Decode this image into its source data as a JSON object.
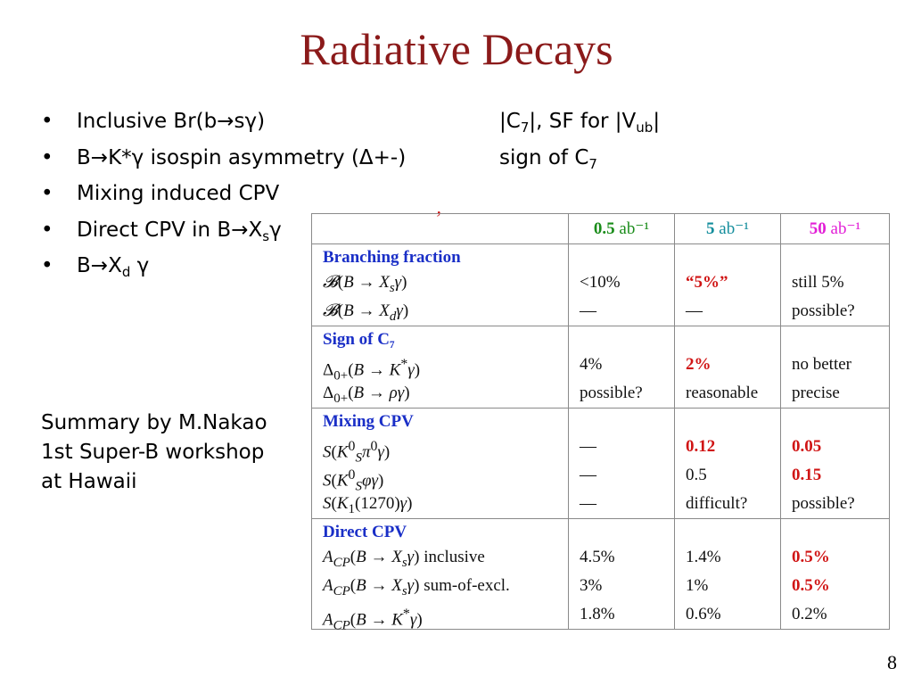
{
  "title": "Radiative Decays",
  "bullets": [
    {
      "pre": "Inclusive Br(b",
      "arrow": "→",
      "target": "s",
      "sub": "",
      "gamma": "γ",
      "post": ")"
    },
    {
      "pre": "B",
      "arrow": "→",
      "target": "K*",
      "sub": "",
      "gamma": "γ",
      "post": " isospin asymmetry (Δ+-)"
    },
    {
      "pre": "Mixing induced CPV",
      "arrow": "",
      "target": "",
      "sub": "",
      "gamma": "",
      "post": ""
    },
    {
      "pre": "Direct CPV in B",
      "arrow": "→",
      "target": "X",
      "sub": "s",
      "gamma": "γ",
      "post": ""
    },
    {
      "pre": "B",
      "arrow": "→",
      "target": "X",
      "sub": "d",
      "gamma": " γ",
      "post": ""
    }
  ],
  "notes": {
    "line1": {
      "a": "|C",
      "a_sub": "7",
      "b": "|, SF for |V",
      "b_sub": "ub",
      "c": "|"
    },
    "line2": {
      "a": "sign of C",
      "a_sub": "7"
    }
  },
  "stray_mark": "ʼ",
  "summary": [
    "Summary by M.Nakao",
    "1st Super-B workshop",
    "at Hawaii"
  ],
  "table": {
    "headers": [
      {
        "num": "0.5",
        "unit": " ab⁻¹"
      },
      {
        "num": "5",
        "unit": " ab⁻¹"
      },
      {
        "num": "50",
        "unit": " ab⁻¹"
      }
    ],
    "sections": [
      {
        "name": "Branching fraction",
        "rows": [
          {
            "label": "𝓑(B → X_sγ)",
            "v1": "<10%",
            "v2": "“5%”",
            "v3": "still 5%",
            "red": [
              false,
              true,
              false
            ]
          },
          {
            "label": "𝓑(B → X_dγ)",
            "v1": "—",
            "v2": "—",
            "v3": "possible?",
            "red": [
              false,
              false,
              false
            ]
          }
        ]
      },
      {
        "name": "Sign of C₇",
        "rows": [
          {
            "label": "Δ₀₊(B → K*γ)",
            "v1": "4%",
            "v2": "2%",
            "v3": "no better",
            "red": [
              false,
              true,
              false
            ]
          },
          {
            "label": "Δ₀₊(B → ργ)",
            "v1": "possible?",
            "v2": "reasonable",
            "v3": "precise",
            "red": [
              false,
              false,
              false
            ]
          }
        ]
      },
      {
        "name": "Mixing CPV",
        "rows": [
          {
            "label": "S(K⁰_Sπ⁰γ)",
            "v1": "—",
            "v2": "0.12",
            "v3": "0.05",
            "red": [
              false,
              true,
              true
            ]
          },
          {
            "label": "S(K⁰_Sφγ)",
            "v1": "—",
            "v2": "0.5",
            "v3": "0.15",
            "red": [
              false,
              false,
              true
            ]
          },
          {
            "label": "S(K₁(1270)γ)",
            "v1": "—",
            "v2": "difficult?",
            "v3": "possible?",
            "red": [
              false,
              false,
              false
            ]
          }
        ]
      },
      {
        "name": "Direct CPV",
        "rows": [
          {
            "label": "A_CP(B → X_sγ) inclusive",
            "v1": "4.5%",
            "v2": "1.4%",
            "v3": "0.5%",
            "red": [
              false,
              false,
              true
            ]
          },
          {
            "label": "A_CP(B → X_sγ) sum-of-excl.",
            "v1": "3%",
            "v2": "1%",
            "v3": "0.5%",
            "red": [
              false,
              false,
              true
            ]
          },
          {
            "label": "A_CP(B → K*γ)",
            "v1": "1.8%",
            "v2": "0.6%",
            "v3": "0.2%",
            "red": [
              false,
              false,
              false
            ]
          }
        ]
      }
    ]
  },
  "slide_number": "8",
  "colors": {
    "title": "#8b1a1a",
    "section_heading": "#1a2fc7",
    "highlight": "#d01515",
    "header_0_5": "#1a8c1a",
    "header_5": "#138d9c",
    "header_50": "#e21ed6"
  }
}
